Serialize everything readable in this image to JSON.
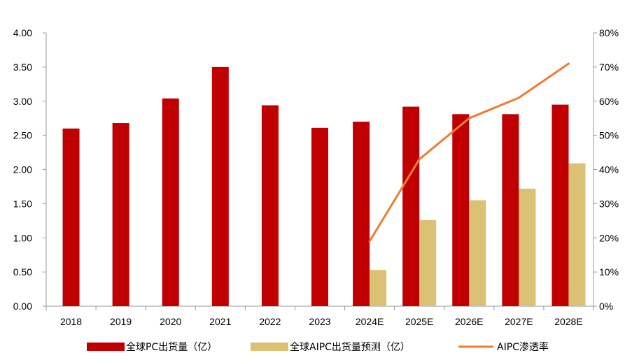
{
  "chart_data": {
    "type": "bar",
    "categories": [
      "2018",
      "2019",
      "2020",
      "2021",
      "2022",
      "2023",
      "2024E",
      "2025E",
      "2026E",
      "2027E",
      "2028E"
    ],
    "series": [
      {
        "name": "全球PC出货量（亿）",
        "type": "bar",
        "axis": "left",
        "color": "#c00000",
        "values": [
          2.6,
          2.68,
          3.04,
          3.5,
          2.94,
          2.61,
          2.7,
          2.92,
          2.81,
          2.81,
          2.95
        ]
      },
      {
        "name": "全球AIPC出货量预测（亿）",
        "type": "bar",
        "axis": "left",
        "color": "#dbc173",
        "values": [
          null,
          null,
          null,
          null,
          null,
          null,
          0.53,
          1.26,
          1.55,
          1.72,
          2.09
        ]
      },
      {
        "name": "AIPC渗透率",
        "type": "line",
        "axis": "right",
        "color": "#ed7d31",
        "unit": "%",
        "values": [
          null,
          null,
          null,
          null,
          null,
          null,
          19,
          43,
          55,
          61,
          71
        ]
      }
    ],
    "y_left": {
      "ylim": [
        0,
        4
      ],
      "ticks": [
        "0.00",
        "0.50",
        "1.00",
        "1.50",
        "2.00",
        "2.50",
        "3.00",
        "3.50",
        "4.00"
      ]
    },
    "y_right": {
      "ylim": [
        0,
        80
      ],
      "ticks": [
        "0%",
        "10%",
        "20%",
        "30%",
        "40%",
        "50%",
        "60%",
        "70%",
        "80%"
      ]
    },
    "grid": false,
    "legend_position": "bottom"
  }
}
